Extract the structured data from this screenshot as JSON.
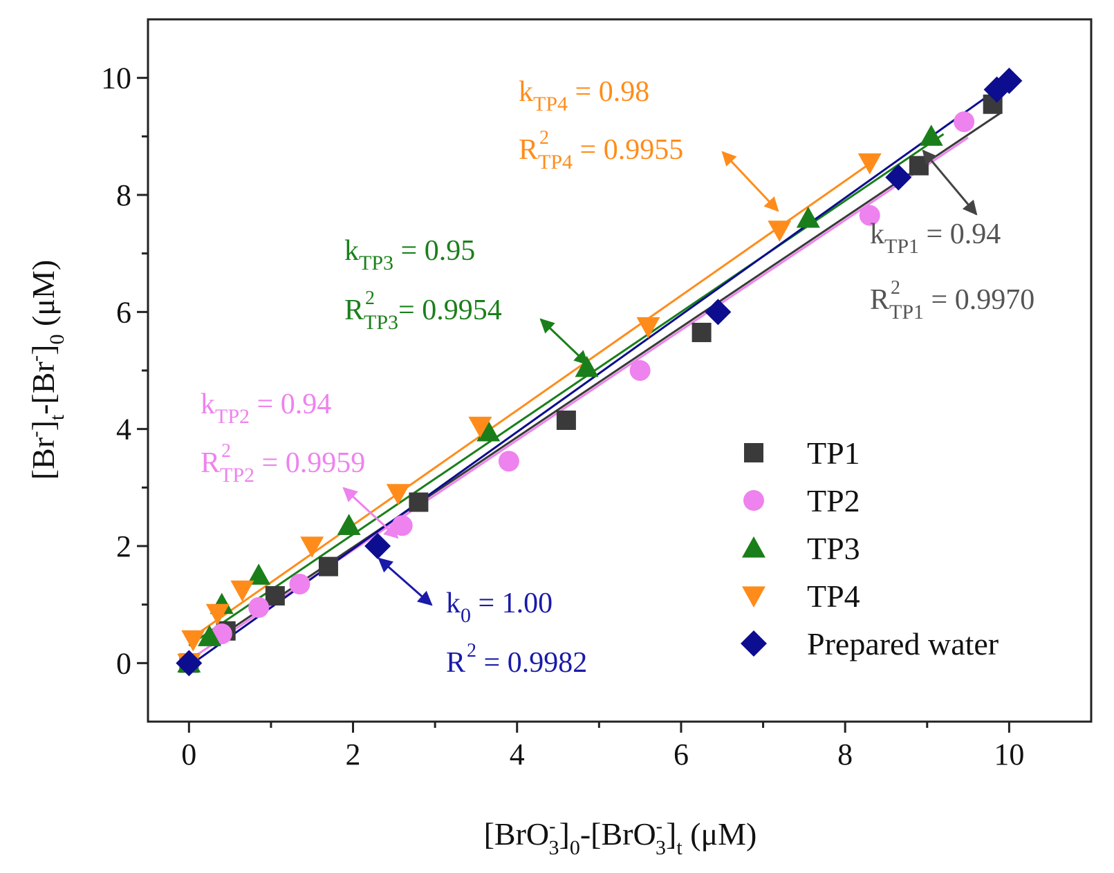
{
  "chart_data": {
    "type": "scatter",
    "xlabel": {
      "a": "[BrO",
      "sub1": "3",
      "sup1": "-",
      "b": "]",
      "sub2": "0",
      "c": "-[BrO",
      "sub3": "3",
      "sup3": "-",
      "d": "]",
      "sub4": "t",
      "e": " (μM)"
    },
    "ylabel": {
      "a": "[Br",
      "sup1": "-",
      "b": "]",
      "sub1": "t",
      "c": "-[Br",
      "sup2": "-",
      "d": "]",
      "sub2": "0",
      "e": " (μM)"
    },
    "xlim": [
      -0.5,
      11
    ],
    "ylim": [
      -1,
      11
    ],
    "xticks": [
      "0",
      "2",
      "4",
      "6",
      "8",
      "10"
    ],
    "yticks": [
      "0",
      "2",
      "4",
      "6",
      "8",
      "10"
    ],
    "grid": false,
    "legend_position": "bottom-right",
    "series": [
      {
        "name": "TP1",
        "marker": "square",
        "color": "#3a3a3a",
        "fit": {
          "slope": 0.94,
          "intercept": 0.1,
          "x0": 0.3,
          "x1": 9.9
        },
        "x": [
          0,
          0.45,
          1.05,
          1.7,
          2.8,
          4.6,
          6.25,
          8.9,
          9.8
        ],
        "y": [
          0,
          0.55,
          1.15,
          1.65,
          2.75,
          4.15,
          5.65,
          8.5,
          9.55
        ]
      },
      {
        "name": "TP2",
        "marker": "circle",
        "color": "#ee82ee",
        "fit": {
          "slope": 0.94,
          "intercept": 0.05,
          "x0": 0.0,
          "x1": 9.5
        },
        "x": [
          0,
          0.4,
          0.85,
          1.35,
          2.6,
          3.9,
          5.5,
          8.3,
          9.45
        ],
        "y": [
          0,
          0.5,
          0.95,
          1.35,
          2.35,
          3.45,
          5.0,
          7.65,
          9.25
        ]
      },
      {
        "name": "TP3",
        "marker": "triangle-up",
        "color": "#1a7f1a",
        "fit": {
          "slope": 0.95,
          "intercept": 0.3,
          "x0": 0.0,
          "x1": 9.2
        },
        "x": [
          0,
          0.25,
          0.4,
          0.85,
          1.95,
          3.65,
          4.85,
          7.55,
          9.05
        ],
        "y": [
          0,
          0.45,
          1.0,
          1.5,
          2.35,
          3.95,
          5.05,
          7.6,
          9.0
        ]
      },
      {
        "name": "TP4",
        "marker": "triangle-down",
        "color": "#ff8c1a",
        "fit": {
          "slope": 0.98,
          "intercept": 0.4,
          "x0": 0.0,
          "x1": 8.3
        },
        "x": [
          0,
          0.05,
          0.35,
          0.65,
          1.5,
          2.55,
          3.55,
          5.6,
          7.2,
          8.3
        ],
        "y": [
          0,
          0.4,
          0.85,
          1.25,
          2.0,
          2.9,
          4.05,
          5.75,
          7.4,
          8.55
        ]
      },
      {
        "name": "Prepared water",
        "marker": "diamond",
        "color": "#0d0d8f",
        "fit": {
          "slope": 1.0,
          "intercept": -0.05,
          "x0": 0.0,
          "x1": 9.9
        },
        "x": [
          0,
          2.3,
          6.45,
          8.65,
          9.85,
          10.0
        ],
        "y": [
          0,
          2.0,
          6.0,
          8.3,
          9.8,
          9.95
        ]
      }
    ],
    "annotations": [
      {
        "id": "tp4",
        "color": "#ff8c1a",
        "k_main": "k",
        "k_sub": "TP4",
        "k_val": " = 0.98",
        "r_main": "R",
        "r_sup": "2",
        "r_sub": "TP4",
        "r_val": " = 0.9955"
      },
      {
        "id": "tp3",
        "color": "#1a7f1a",
        "k_main": "k",
        "k_sub": "TP3",
        "k_val": " = 0.95",
        "r_main": "R",
        "r_sup": "2",
        "r_sub": "TP3",
        "r_val": "= 0.9954"
      },
      {
        "id": "tp2",
        "color": "#ee82ee",
        "k_main": "k",
        "k_sub": "TP2",
        "k_val": " = 0.94",
        "r_main": "R",
        "r_sup": "2",
        "r_sub": "TP2",
        "r_val": " = 0.9959"
      },
      {
        "id": "tp1",
        "color": "#555555",
        "k_main": "k",
        "k_sub": "TP1",
        "k_val": " = 0.94",
        "r_main": "R",
        "r_sup": "2",
        "r_sub": "TP1",
        "r_val": " = 0.9970"
      },
      {
        "id": "k0",
        "color": "#1a1aa8",
        "k_main": "k",
        "k_sub": "0",
        "k_val": " = 1.00",
        "r_main": "R",
        "r_sup": "2",
        "r_sub": "",
        "r_val": " = 0.9982"
      }
    ]
  }
}
